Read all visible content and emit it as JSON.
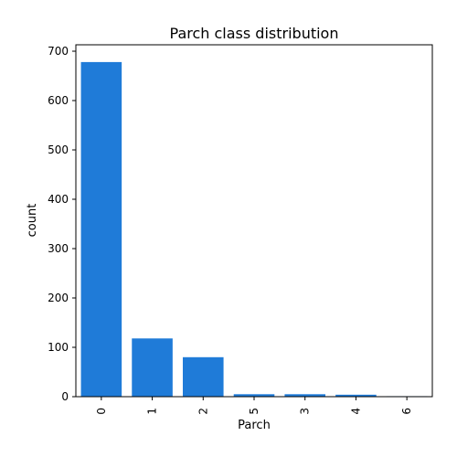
{
  "chart_data": {
    "type": "bar",
    "title": "Parch class distribution",
    "xlabel": "Parch",
    "ylabel": "count",
    "categories": [
      "0",
      "1",
      "2",
      "5",
      "3",
      "4",
      "6"
    ],
    "values": [
      678,
      118,
      80,
      5,
      5,
      4,
      1
    ],
    "ylim": [
      0,
      713
    ],
    "yticks": [
      0,
      100,
      200,
      300,
      400,
      500,
      600,
      700
    ],
    "bar_color": "#1f7bd8",
    "grid": false,
    "legend": "none"
  }
}
